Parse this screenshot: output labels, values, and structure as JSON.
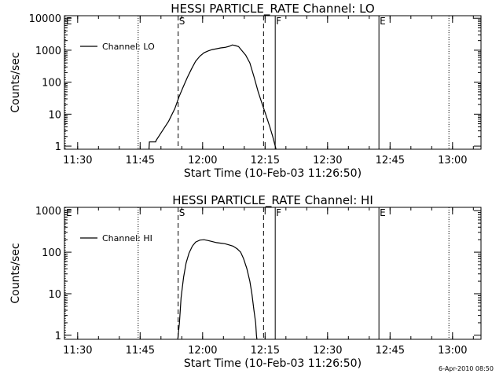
{
  "chart_data": [
    {
      "type": "line",
      "title": "HESSI PARTICLE_RATE Channel: LO",
      "xlabel": "Start Time (10-Feb-03 11:26:50)",
      "ylabel": "Counts/sec",
      "x_unit": "minutes after 11:26:50",
      "xlim": [
        0,
        100
      ],
      "ylim": [
        0.8,
        12000
      ],
      "yscale": "log",
      "xticks": [
        {
          "x": 3.17,
          "label": "11:30"
        },
        {
          "x": 18.17,
          "label": "11:45"
        },
        {
          "x": 33.17,
          "label": "12:00"
        },
        {
          "x": 48.17,
          "label": "12:15"
        },
        {
          "x": 63.17,
          "label": "12:30"
        },
        {
          "x": 78.17,
          "label": "12:45"
        },
        {
          "x": 93.17,
          "label": "13:00"
        }
      ],
      "yticks": [
        {
          "y": 1,
          "label": "1"
        },
        {
          "y": 10,
          "label": "10"
        },
        {
          "y": 100,
          "label": "100"
        },
        {
          "y": 1000,
          "label": "1000"
        },
        {
          "y": 10000,
          "label": "10000"
        }
      ],
      "legend": {
        "label": "Channel: LO",
        "position": "top-left"
      },
      "markers": [
        {
          "x": 0.2,
          "style": "dotted",
          "label": "E"
        },
        {
          "x": 17.7,
          "style": "dotted",
          "label": ""
        },
        {
          "x": 27.3,
          "style": "dashed",
          "label": "S"
        },
        {
          "x": 47.8,
          "style": "dashed",
          "label": ""
        },
        {
          "x": 50.6,
          "style": "solid",
          "label": "F"
        },
        {
          "x": 75.5,
          "style": "solid",
          "label": "E"
        },
        {
          "x": 92.3,
          "style": "dotted",
          "label": ""
        }
      ],
      "series": [
        {
          "name": "Channel: LO",
          "points": [
            [
              20.3,
              0.8
            ],
            [
              20.4,
              1.35
            ],
            [
              21.9,
              1.35
            ],
            [
              22.0,
              1.5
            ],
            [
              23.5,
              3
            ],
            [
              25.0,
              6
            ],
            [
              26.5,
              15
            ],
            [
              27.5,
              35
            ],
            [
              28.5,
              70
            ],
            [
              29.5,
              140
            ],
            [
              30.5,
              260
            ],
            [
              31.5,
              450
            ],
            [
              32.5,
              650
            ],
            [
              33.5,
              830
            ],
            [
              34.5,
              950
            ],
            [
              35.5,
              1050
            ],
            [
              36.5,
              1110
            ],
            [
              37.5,
              1180
            ],
            [
              38.5,
              1220
            ],
            [
              39.5,
              1320
            ],
            [
              40.3,
              1460
            ],
            [
              41.0,
              1400
            ],
            [
              41.8,
              1300
            ],
            [
              42.5,
              1000
            ],
            [
              43.5,
              700
            ],
            [
              44.5,
              400
            ],
            [
              45.5,
              150
            ],
            [
              46.5,
              50
            ],
            [
              47.5,
              20
            ],
            [
              48.3,
              10
            ],
            [
              49.3,
              4
            ],
            [
              50.0,
              2
            ],
            [
              50.6,
              1
            ],
            [
              50.8,
              0.8
            ]
          ]
        }
      ]
    },
    {
      "type": "line",
      "title": "HESSI PARTICLE_RATE Channel: HI",
      "xlabel": "Start Time (10-Feb-03 11:26:50)",
      "ylabel": "Counts/sec",
      "x_unit": "minutes after 11:26:50",
      "xlim": [
        0,
        100
      ],
      "ylim": [
        0.8,
        1200
      ],
      "yscale": "log",
      "xticks": [
        {
          "x": 3.17,
          "label": "11:30"
        },
        {
          "x": 18.17,
          "label": "11:45"
        },
        {
          "x": 33.17,
          "label": "12:00"
        },
        {
          "x": 48.17,
          "label": "12:15"
        },
        {
          "x": 63.17,
          "label": "12:30"
        },
        {
          "x": 78.17,
          "label": "12:45"
        },
        {
          "x": 93.17,
          "label": "13:00"
        }
      ],
      "yticks": [
        {
          "y": 1,
          "label": "1"
        },
        {
          "y": 10,
          "label": "10"
        },
        {
          "y": 100,
          "label": "100"
        },
        {
          "y": 1000,
          "label": "1000"
        }
      ],
      "legend": {
        "label": "Channel: HI",
        "position": "top-left"
      },
      "markers": [
        {
          "x": 0.2,
          "style": "dotted",
          "label": "E"
        },
        {
          "x": 17.7,
          "style": "dotted",
          "label": ""
        },
        {
          "x": 27.3,
          "style": "dashed",
          "label": "S"
        },
        {
          "x": 47.8,
          "style": "dashed",
          "label": ""
        },
        {
          "x": 50.6,
          "style": "solid",
          "label": "F"
        },
        {
          "x": 75.5,
          "style": "solid",
          "label": "E"
        },
        {
          "x": 92.3,
          "style": "dotted",
          "label": ""
        }
      ],
      "series": [
        {
          "name": "Channel: HI",
          "points": [
            [
              27.2,
              0.8
            ],
            [
              27.6,
              2
            ],
            [
              28.0,
              8
            ],
            [
              28.6,
              25
            ],
            [
              29.2,
              55
            ],
            [
              29.9,
              95
            ],
            [
              30.7,
              140
            ],
            [
              31.5,
              175
            ],
            [
              32.5,
              195
            ],
            [
              33.5,
              200
            ],
            [
              34.5,
              190
            ],
            [
              35.5,
              180
            ],
            [
              36.5,
              170
            ],
            [
              37.5,
              165
            ],
            [
              38.5,
              160
            ],
            [
              39.5,
              150
            ],
            [
              40.5,
              140
            ],
            [
              41.5,
              120
            ],
            [
              42.3,
              100
            ],
            [
              43.0,
              70
            ],
            [
              43.8,
              40
            ],
            [
              44.5,
              20
            ],
            [
              45.0,
              10
            ],
            [
              45.5,
              4
            ],
            [
              45.9,
              2
            ],
            [
              46.1,
              1
            ],
            [
              46.2,
              0.8
            ]
          ]
        }
      ]
    }
  ],
  "footer": {
    "timestamp": "6-Apr-2010 08:50"
  }
}
